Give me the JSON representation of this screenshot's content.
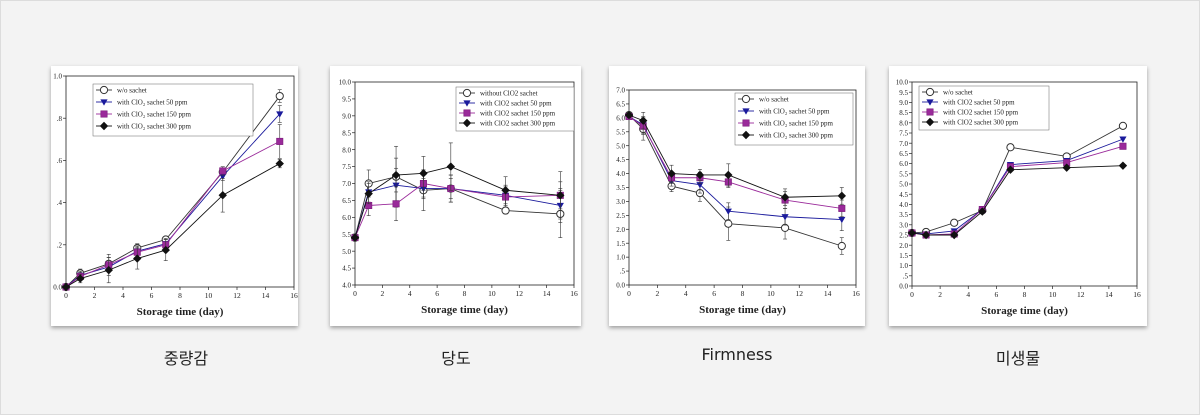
{
  "captions": [
    "중량감",
    "당도",
    "Firmness",
    "미생물"
  ],
  "colors": {
    "s1": "#333333",
    "s2": "#1a1a9c",
    "s3": "#9a2a9a",
    "s4": "#111111"
  },
  "chart_data": [
    {
      "type": "line",
      "title": "",
      "xlabel": "Storage time (day)",
      "ylabel": "",
      "xlim": [
        0,
        16
      ],
      "ylim": [
        0,
        1.0
      ],
      "xticks": [
        "0",
        "2",
        "4",
        "6",
        "8",
        "10",
        "12",
        "14",
        "16"
      ],
      "yticks": [
        "0.0",
        ".2",
        ".4",
        ".6",
        ".8",
        "1.0"
      ],
      "legend_position": "top-left",
      "x": [
        0,
        1,
        3,
        5,
        7,
        11,
        15
      ],
      "series": [
        {
          "name": "w/o sachet",
          "marker": "circle",
          "values": [
            0.0,
            0.065,
            0.11,
            0.185,
            0.225,
            0.545,
            0.905
          ],
          "err": [
            0,
            0.02,
            0.03,
            0.02,
            0.01,
            0.02,
            0.03
          ]
        },
        {
          "name": "with ClO₂ sachet 50 ppm",
          "marker": "triangle",
          "values": [
            0.0,
            0.055,
            0.095,
            0.17,
            0.205,
            0.525,
            0.82
          ],
          "err": [
            0,
            0.02,
            0.02,
            0.02,
            0.02,
            0.02,
            0.04
          ]
        },
        {
          "name": "with ClO₂ sachet 150 ppm",
          "marker": "square",
          "values": [
            0.0,
            0.05,
            0.105,
            0.165,
            0.2,
            0.55,
            0.69
          ],
          "err": [
            0,
            0.02,
            0.05,
            0.03,
            0.03,
            0.02,
            0.08
          ]
        },
        {
          "name": "with ClO₂ sachet 300 ppm",
          "marker": "diamond",
          "values": [
            0.0,
            0.04,
            0.08,
            0.135,
            0.175,
            0.435,
            0.585
          ],
          "err": [
            0,
            0.02,
            0.06,
            0.05,
            0.05,
            0.08,
            0.02
          ]
        }
      ]
    },
    {
      "type": "line",
      "title": "",
      "xlabel": "Storage time (day)",
      "ylabel": "",
      "xlim": [
        0,
        16
      ],
      "ylim": [
        4.0,
        10.0
      ],
      "xticks": [
        "0",
        "2",
        "4",
        "6",
        "8",
        "10",
        "12",
        "14",
        "16"
      ],
      "yticks": [
        "4.0",
        "4.5",
        "5.0",
        "5.5",
        "6.0",
        "6.5",
        "7.0",
        "7.5",
        "8.0",
        "8.5",
        "9.0",
        "9.5",
        "10.0"
      ],
      "legend_position": "top-right",
      "x": [
        0,
        1,
        3,
        5,
        7,
        11,
        15
      ],
      "series": [
        {
          "name": "without ClO2 sachet",
          "marker": "circle",
          "values": [
            5.4,
            7.0,
            7.2,
            6.8,
            6.85,
            6.2,
            6.1
          ],
          "err": [
            0.1,
            0.4,
            0.9,
            0.6,
            0.4,
            0.1,
            0.7
          ]
        },
        {
          "name": "with ClO2 sachet 50 ppm",
          "marker": "triangle",
          "values": [
            5.4,
            6.75,
            6.95,
            6.85,
            6.85,
            6.65,
            6.35
          ],
          "err": [
            0.1,
            0.3,
            0.5,
            0.3,
            0.3,
            0.3,
            0.5
          ]
        },
        {
          "name": "with ClO2 sachet 150 ppm",
          "marker": "square",
          "values": [
            5.4,
            6.35,
            6.4,
            7.0,
            6.85,
            6.6,
            6.65
          ],
          "err": [
            0.1,
            0.3,
            0.5,
            0.4,
            0.4,
            0.3,
            0.4
          ]
        },
        {
          "name": "with ClO2 sachet 300 ppm",
          "marker": "diamond",
          "values": [
            5.4,
            6.7,
            7.25,
            7.3,
            7.5,
            6.8,
            6.65
          ],
          "err": [
            0.1,
            0.3,
            0.5,
            0.5,
            0.7,
            0.4,
            0.7
          ]
        }
      ]
    },
    {
      "type": "line",
      "title": "",
      "xlabel": "Storage time (day)",
      "ylabel": "",
      "xlim": [
        0,
        16
      ],
      "ylim": [
        0.0,
        7.0
      ],
      "xticks": [
        "0",
        "2",
        "4",
        "6",
        "8",
        "10",
        "12",
        "14",
        "16"
      ],
      "yticks": [
        "0.0",
        ".5",
        "1.0",
        "1.5",
        "2.0",
        "2.5",
        "3.0",
        "3.5",
        "4.0",
        "4.5",
        "5.0",
        "5.5",
        "6.0",
        "6.5",
        "7.0"
      ],
      "legend_position": "top-right",
      "x": [
        0,
        1,
        3,
        5,
        7,
        11,
        15
      ],
      "series": [
        {
          "name": "w/o sachet",
          "marker": "circle",
          "values": [
            6.1,
            5.6,
            3.55,
            3.3,
            2.2,
            2.05,
            1.4
          ],
          "err": [
            0.1,
            0.4,
            0.2,
            0.3,
            0.6,
            0.4,
            0.3
          ]
        },
        {
          "name": "with ClO₂ sachet 50 ppm",
          "marker": "triangle",
          "values": [
            6.05,
            5.75,
            3.75,
            3.6,
            2.65,
            2.45,
            2.35
          ],
          "err": [
            0.1,
            0.3,
            0.2,
            0.3,
            0.3,
            0.3,
            0.4
          ]
        },
        {
          "name": "with ClO₂ sachet 150 ppm",
          "marker": "square",
          "values": [
            6.05,
            5.7,
            3.85,
            3.85,
            3.7,
            3.05,
            2.75
          ],
          "err": [
            0.1,
            0.3,
            0.2,
            0.2,
            0.2,
            0.3,
            0.3
          ]
        },
        {
          "name": "with ClO₂ sachet 300 ppm",
          "marker": "diamond",
          "values": [
            6.1,
            5.9,
            4.0,
            3.95,
            3.95,
            3.15,
            3.2
          ],
          "err": [
            0.1,
            0.3,
            0.3,
            0.2,
            0.4,
            0.3,
            0.3
          ]
        }
      ]
    },
    {
      "type": "line",
      "title": "",
      "xlabel": "Storage time (day)",
      "ylabel": "",
      "xlim": [
        0,
        16
      ],
      "ylim": [
        0.0,
        10.0
      ],
      "xticks": [
        "0",
        "2",
        "4",
        "6",
        "8",
        "10",
        "12",
        "14",
        "16"
      ],
      "yticks": [
        "0.0",
        ".5",
        "1.0",
        "1.5",
        "2.0",
        "2.5",
        "3.0",
        "3.5",
        "4.0",
        "4.5",
        "5.0",
        "5.5",
        "6.0",
        "6.5",
        "7.0",
        "7.5",
        "8.0",
        "8.5",
        "9.0",
        "9.5",
        "10.0"
      ],
      "legend_position": "top-left",
      "x": [
        0,
        1,
        3,
        5,
        7,
        11,
        15
      ],
      "series": [
        {
          "name": "w/o sachet",
          "marker": "circle",
          "values": [
            2.6,
            2.65,
            3.1,
            3.7,
            6.8,
            6.35,
            7.85
          ],
          "err": [
            0,
            0,
            0,
            0,
            0,
            0,
            0
          ]
        },
        {
          "name": "with ClO2 sachet 50 ppm",
          "marker": "triangle",
          "values": [
            2.6,
            2.55,
            2.7,
            3.75,
            5.95,
            6.15,
            7.2
          ],
          "err": [
            0,
            0,
            0,
            0,
            0,
            0,
            0
          ]
        },
        {
          "name": "with ClO2 sachet 150 ppm",
          "marker": "square",
          "values": [
            2.6,
            2.5,
            2.55,
            3.75,
            5.85,
            6.05,
            6.85
          ],
          "err": [
            0,
            0,
            0,
            0,
            0,
            0,
            0
          ]
        },
        {
          "name": "with ClO2 sachet 300 ppm",
          "marker": "diamond",
          "values": [
            2.6,
            2.5,
            2.5,
            3.65,
            5.7,
            5.8,
            5.9
          ],
          "err": [
            0,
            0,
            0,
            0,
            0,
            0,
            0
          ]
        }
      ]
    }
  ]
}
